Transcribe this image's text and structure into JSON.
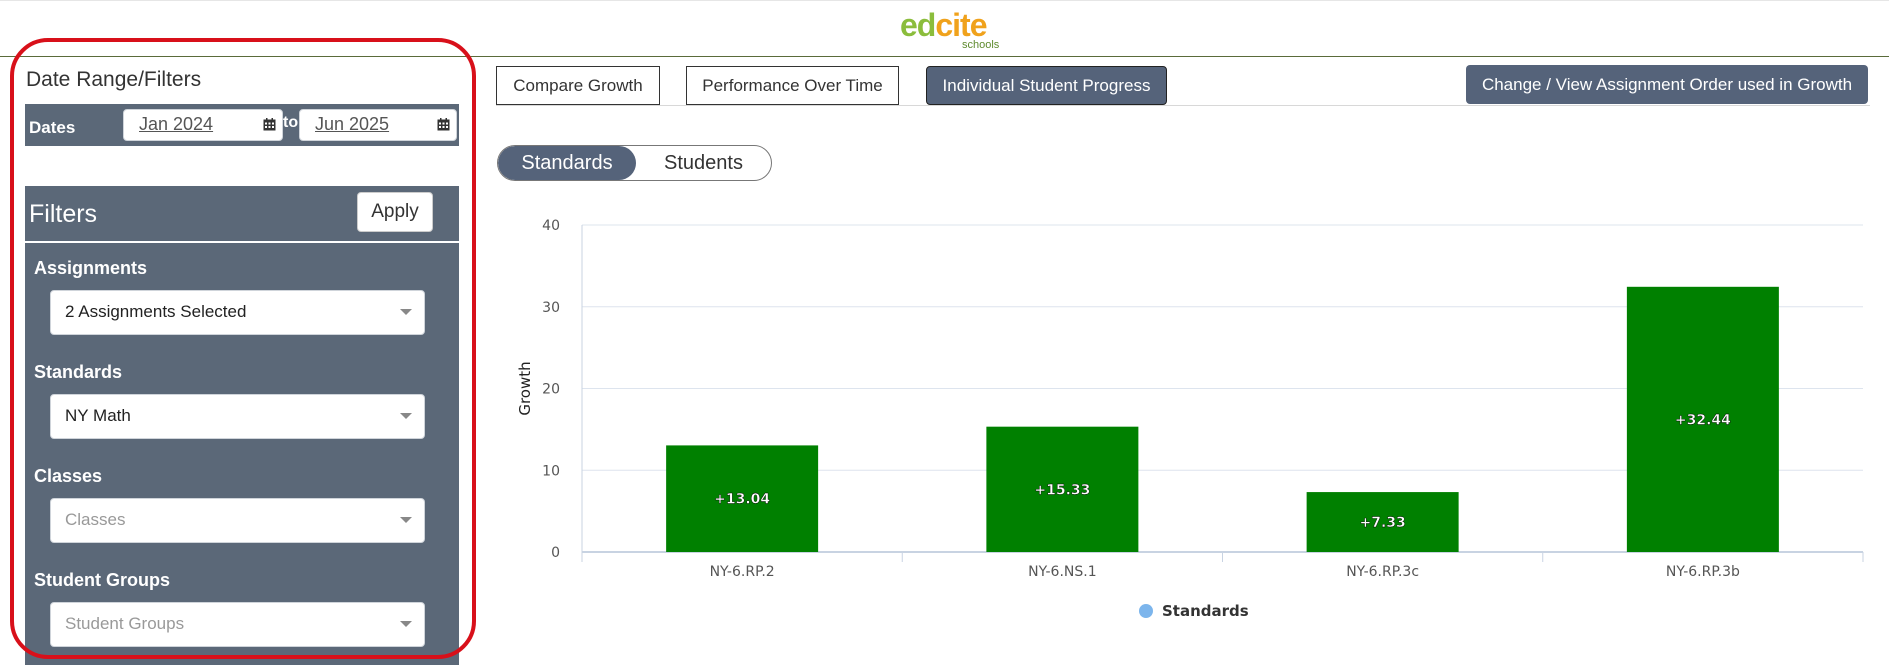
{
  "header": {
    "logo_ed": "ed",
    "logo_cite": "cite",
    "logo_sub": "schools"
  },
  "left_panel": {
    "title": "Date Range/Filters",
    "dates": {
      "label": "Dates",
      "from": "Jan 2024",
      "to_label": "to",
      "to": "Jun 2025"
    },
    "filters": {
      "title": "Filters",
      "apply_label": "Apply",
      "groups": [
        {
          "label": "Assignments",
          "value": "2 Assignments Selected",
          "placeholder": ""
        },
        {
          "label": "Standards",
          "value": "NY Math",
          "placeholder": ""
        },
        {
          "label": "Classes",
          "value": "",
          "placeholder": "Classes"
        },
        {
          "label": "Student Groups",
          "value": "",
          "placeholder": "Student Groups"
        }
      ]
    }
  },
  "tabs": [
    {
      "label": "Compare Growth",
      "active": false
    },
    {
      "label": "Performance Over Time",
      "active": false
    },
    {
      "label": "Individual Student Progress",
      "active": true
    }
  ],
  "order_button_label": "Change / View Assignment Order used in Growth",
  "view_toggle": {
    "standards": "Standards",
    "students": "Students",
    "selected": "Standards"
  },
  "colors": {
    "panel": "#5b6878",
    "bar": "#008000",
    "accent_button": "#55637a",
    "legend_dot": "#7cb5ec",
    "outline": "#d8101a"
  },
  "chart_data": {
    "type": "bar",
    "ylabel": "Growth",
    "ylim": [
      0,
      40
    ],
    "yticks": [
      "0",
      "10",
      "20",
      "30",
      "40"
    ],
    "categories": [
      "NY-6.RP.2",
      "NY-6.NS.1",
      "NY-6.RP.3c",
      "NY-6.RP.3b"
    ],
    "series": [
      {
        "name": "Standards",
        "values": [
          13.04,
          15.33,
          7.33,
          32.44
        ],
        "labels": [
          "+13.04",
          "+15.33",
          "+7.33",
          "+32.44"
        ]
      }
    ],
    "legend": "bottom-center",
    "grid": true
  }
}
